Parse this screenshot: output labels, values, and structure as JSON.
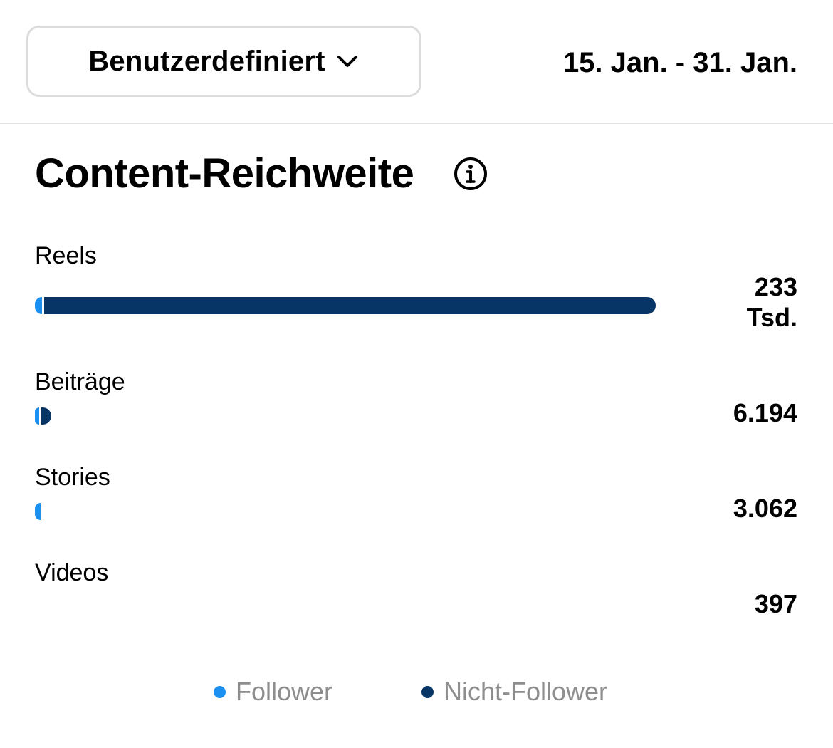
{
  "header": {
    "range_label": "Benutzerdefiniert",
    "date_range": "15. Jan. - 31. Jan."
  },
  "section": {
    "title": "Content-Reichweite"
  },
  "colors": {
    "follower": "#1b90f0",
    "non_follower": "#063566"
  },
  "rows": [
    {
      "label": "Reels",
      "value_line1": "233",
      "value_line2": "Tsd.",
      "follower_pct": 1.2,
      "non_follower_pct": 98.8,
      "total_fraction": 1.0
    },
    {
      "label": "Beiträge",
      "value_line1": "6.194",
      "value_line2": "",
      "follower_pct": 25,
      "non_follower_pct": 75,
      "total_fraction": 0.0266
    },
    {
      "label": "Stories",
      "value_line1": "3.062",
      "value_line2": "",
      "follower_pct": 70,
      "non_follower_pct": 30,
      "total_fraction": 0.0131
    },
    {
      "label": "Videos",
      "value_line1": "397",
      "value_line2": "",
      "follower_pct": 50,
      "non_follower_pct": 50,
      "total_fraction": 0.0017
    }
  ],
  "legend": [
    {
      "label": "Follower"
    },
    {
      "label": "Nicht-Follower"
    }
  ]
}
